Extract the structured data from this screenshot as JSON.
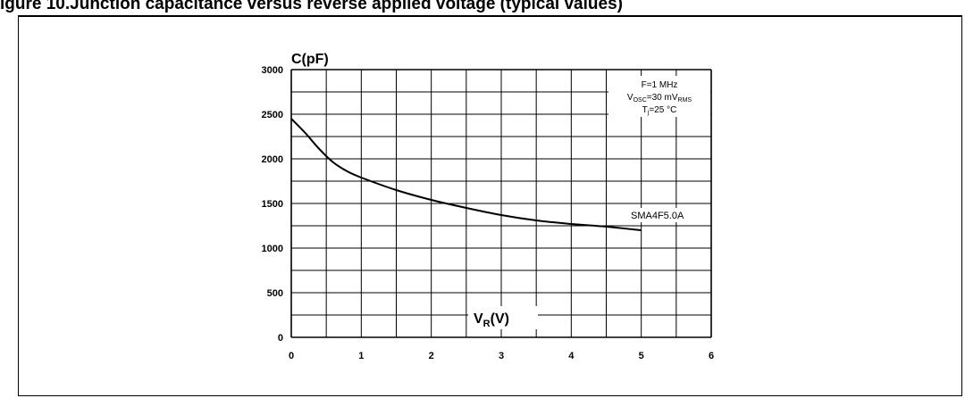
{
  "figure": {
    "caption": "igure 10.Junction capacitance versus reverse applied voltage (typical values)"
  },
  "chart_data": {
    "type": "line",
    "ylabel": "C(pF)",
    "xlabel_main": "V",
    "xlabel_sub": "R",
    "xlabel_unit": "(V)",
    "xlim": [
      0,
      6
    ],
    "ylim": [
      0,
      3000
    ],
    "x_ticks": [
      "0",
      "1",
      "2",
      "3",
      "4",
      "5",
      "6"
    ],
    "y_ticks": [
      "0",
      "500",
      "1000",
      "1500",
      "2000",
      "2500",
      "3000"
    ],
    "grid": true,
    "conditions": {
      "line1": "F=1 MHz",
      "line2_main": "V",
      "line2_sub": "OSC",
      "line2_mid": "=30 mV",
      "line2_sub2": "RMS",
      "line3_main": "T",
      "line3_sub": "j",
      "line3_rest": "=25 °C"
    },
    "series": [
      {
        "name": "SMA4F5.0A",
        "x": [
          0,
          0.2,
          0.4,
          0.6,
          0.8,
          1.0,
          1.5,
          2.0,
          2.5,
          3.0,
          3.5,
          4.0,
          4.5,
          5.0
        ],
        "y": [
          2450,
          2290,
          2110,
          1960,
          1860,
          1790,
          1650,
          1540,
          1450,
          1370,
          1310,
          1270,
          1240,
          1200
        ]
      }
    ]
  }
}
